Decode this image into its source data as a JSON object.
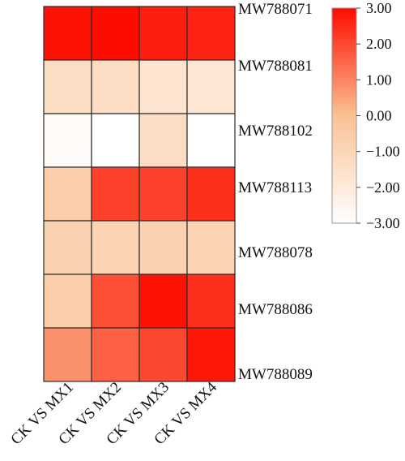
{
  "chart_data": {
    "type": "heatmap",
    "title": "",
    "xlabel": "",
    "ylabel": "",
    "columns": [
      "CK VS MX1",
      "CK VS MX2",
      "CK VS MX3",
      "CK VS MX4"
    ],
    "rows": [
      "MW788071",
      "MW788081",
      "MW788102",
      "MW788113",
      "MW788078",
      "MW788086",
      "MW788089"
    ],
    "values": [
      [
        2.9,
        3.0,
        2.7,
        2.6
      ],
      [
        -1.4,
        -1.3,
        -1.7,
        -1.8
      ],
      [
        -2.8,
        -3.0,
        -1.3,
        -3.0
      ],
      [
        -0.6,
        2.1,
        2.1,
        2.4
      ],
      [
        -0.8,
        -0.9,
        -0.8,
        -0.9
      ],
      [
        -0.6,
        1.9,
        2.9,
        2.4
      ],
      [
        0.8,
        1.6,
        2.0,
        2.8
      ]
    ],
    "colorbar": {
      "range": [
        -3.0,
        3.0
      ],
      "ticks": [
        "3.00",
        "2.00",
        "1.00",
        "0.00",
        "−1.00",
        "−2.00",
        "−3.00"
      ],
      "tick_values": [
        3,
        2,
        1,
        0,
        -1,
        -2,
        -3
      ],
      "colors": [
        "#ffffff",
        "#fac193",
        "#fe0c00"
      ]
    }
  }
}
